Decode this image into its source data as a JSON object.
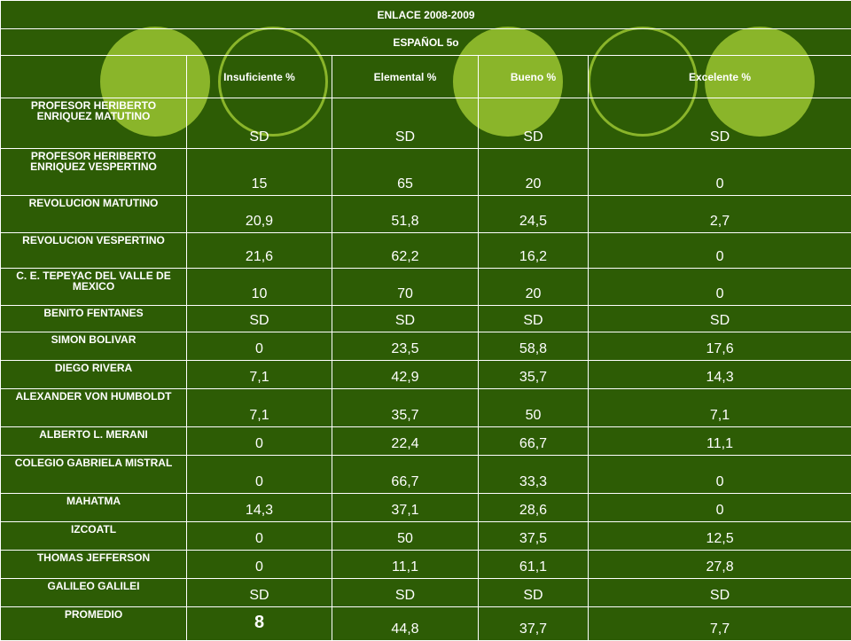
{
  "table": {
    "title": "ENLACE 2008-2009",
    "subtitle": "ESPAÑOL  5o",
    "column_headers": [
      "Insuficiente %",
      "Elemental %",
      "Bueno %",
      "Excelente %"
    ],
    "rows": [
      {
        "school": "PROFESOR HERIBERTO ENRIQUEZ MATUTINO",
        "values": [
          "SD",
          "SD",
          "SD",
          "SD"
        ]
      },
      {
        "school": "PROFESOR HERIBERTO ENRIQUEZ VESPERTINO",
        "values": [
          "15",
          "65",
          "20",
          "0"
        ]
      },
      {
        "school": "REVOLUCION MATUTINO",
        "values": [
          "20,9",
          "51,8",
          "24,5",
          "2,7"
        ]
      },
      {
        "school": "REVOLUCION VESPERTINO",
        "values": [
          "21,6",
          "62,2",
          "16,2",
          "0"
        ]
      },
      {
        "school": "C. E. TEPEYAC DEL VALLE DE MEXICO",
        "values": [
          "10",
          "70",
          "20",
          "0"
        ]
      },
      {
        "school": "BENITO FENTANES",
        "values": [
          "SD",
          "SD",
          "SD",
          "SD"
        ]
      },
      {
        "school": "SIMON BOLIVAR",
        "values": [
          "0",
          "23,5",
          "58,8",
          "17,6"
        ]
      },
      {
        "school": "DIEGO RIVERA",
        "values": [
          "7,1",
          "42,9",
          "35,7",
          "14,3"
        ]
      },
      {
        "school": "ALEXANDER VON HUMBOLDT",
        "values": [
          "7,1",
          "35,7",
          "50",
          "7,1"
        ]
      },
      {
        "school": "ALBERTO L. MERANI",
        "values": [
          "0",
          "22,4",
          "66,7",
          "11,1"
        ]
      },
      {
        "school": "COLEGIO GABRIELA MISTRAL",
        "values": [
          "0",
          "66,7",
          "33,3",
          "0"
        ]
      },
      {
        "school": "MAHATMA",
        "values": [
          "14,3",
          "37,1",
          "28,6",
          "0"
        ]
      },
      {
        "school": "IZCOATL",
        "values": [
          "0",
          "50",
          "37,5",
          "12,5"
        ]
      },
      {
        "school": "THOMAS JEFFERSON",
        "values": [
          "0",
          "11,1",
          "61,1",
          "27,8"
        ]
      },
      {
        "school": "GALILEO GALILEI",
        "values": [
          "SD",
          "SD",
          "SD",
          "SD"
        ]
      },
      {
        "school": "PROMEDIO",
        "values": [
          "8",
          "44,8",
          "37,7",
          "7,7"
        ]
      }
    ]
  },
  "colors": {
    "background": "#2d5c05",
    "accent": "#8ab52a",
    "text": "#ffffff"
  }
}
